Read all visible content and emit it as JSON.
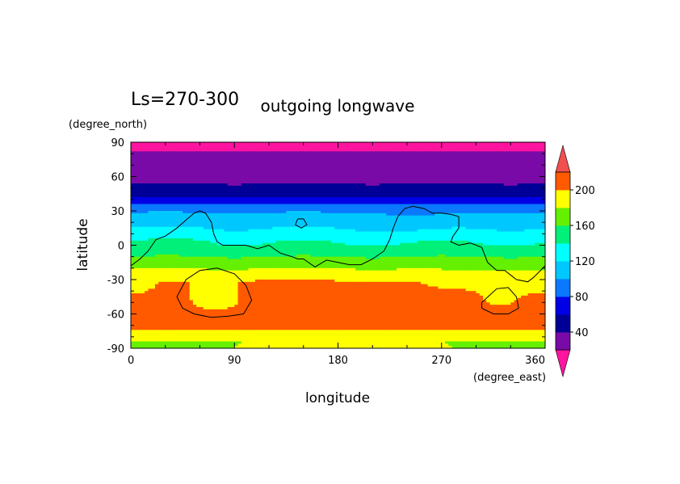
{
  "chart_data": {
    "type": "heatmap",
    "title": "outgoing longwave",
    "subtitle": "Ls=270-300",
    "xlabel": "longitude",
    "ylabel": "latitude",
    "x_units": "(degree_east)",
    "y_units": "(degree_north)",
    "xlim": [
      0,
      360
    ],
    "ylim": [
      -90,
      90
    ],
    "x_ticks": [
      "0",
      "90",
      "180",
      "270",
      "360"
    ],
    "y_ticks": [
      "90",
      "60",
      "30",
      "0",
      "-30",
      "-60",
      "-90"
    ],
    "x_tick_values": [
      0,
      90,
      180,
      270,
      360
    ],
    "y_tick_values": [
      90,
      60,
      30,
      0,
      -30,
      -60,
      -90
    ],
    "color_levels": [
      20,
      40,
      60,
      80,
      100,
      120,
      140,
      160,
      180,
      200,
      220
    ],
    "colorbar_labels": [
      "40",
      "80",
      "120",
      "160",
      "200"
    ],
    "colorbar_label_values": [
      40,
      80,
      120,
      160,
      200
    ],
    "colors": [
      "#7a0aa8",
      "#000096",
      "#0000e6",
      "#0a78ff",
      "#00c8ff",
      "#00ffff",
      "#00f07a",
      "#64f000",
      "#ffff00",
      "#ff5a00"
    ],
    "overflow_high_color": "#f05050",
    "overflow_low_color": "#ff14a0",
    "grid": false,
    "legend": "right",
    "lat_profile": {
      "lat": [
        87,
        75,
        62,
        48,
        40,
        33,
        26,
        20,
        14,
        8,
        3,
        -3,
        -10,
        -18,
        -26,
        -33,
        -45,
        -60,
        -70,
        -77,
        -84
      ],
      "value": [
        15,
        27,
        33,
        44,
        64,
        90,
        106,
        113,
        121,
        128,
        139,
        145,
        160,
        175,
        190,
        203,
        210,
        212,
        206,
        195,
        180
      ]
    },
    "topography_contours": [
      {
        "lon": [
          0,
          8,
          15,
          22,
          30,
          40,
          48,
          55,
          60,
          65,
          70,
          72,
          75,
          80,
          90,
          100,
          110,
          120,
          130,
          140,
          145,
          150,
          160,
          170,
          180,
          190,
          200,
          210,
          220,
          225,
          228,
          232,
          238,
          245,
          255,
          262,
          270,
          278,
          285,
          285,
          280,
          278,
          285,
          295,
          305,
          310,
          318,
          325,
          335,
          345,
          350,
          360
        ],
        "lat": [
          -18,
          -12,
          -5,
          5,
          8,
          15,
          22,
          28,
          30,
          28,
          20,
          10,
          3,
          0,
          0,
          0,
          -3,
          0,
          -7,
          -10,
          -12,
          -12,
          -19,
          -13,
          -15,
          -17,
          -17,
          -12,
          -5,
          5,
          15,
          25,
          32,
          34,
          32,
          28,
          28,
          27,
          25,
          15,
          8,
          3,
          0,
          2,
          -2,
          -15,
          -22,
          -22,
          -30,
          -32,
          -28,
          -18
        ]
      },
      {
        "lon": [
          145,
          150,
          153,
          148,
          143,
          145
        ],
        "lat": [
          23,
          23,
          18,
          15,
          18,
          23
        ]
      },
      {
        "lon": [
          40,
          48,
          60,
          75,
          90,
          100,
          105,
          98,
          85,
          70,
          55,
          45,
          40
        ],
        "lat": [
          -45,
          -30,
          -22,
          -20,
          -25,
          -35,
          -48,
          -60,
          -62,
          -63,
          -60,
          -55,
          -45
        ]
      },
      {
        "lon": [
          305,
          318,
          328,
          335,
          337,
          328,
          315,
          305,
          305
        ],
        "lat": [
          -50,
          -38,
          -37,
          -45,
          -55,
          -60,
          -60,
          -55,
          -50
        ]
      }
    ]
  }
}
